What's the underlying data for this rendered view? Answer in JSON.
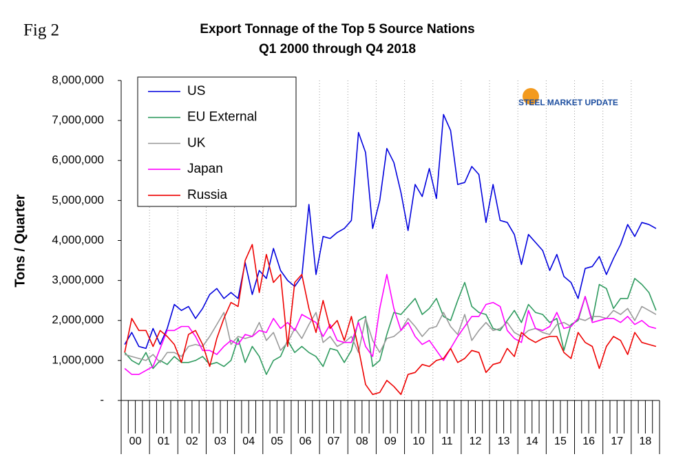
{
  "fig_label": "Fig 2",
  "logo": "STEEL MARKET UPDATE",
  "chart_data": {
    "type": "line",
    "title": "Export Tonnage of the Top 5 Source Nations",
    "subtitle": "Q1 2000 through Q4 2018",
    "y_label": "Tons / Quarter",
    "groups": [
      "00",
      "01",
      "02",
      "03",
      "04",
      "05",
      "06",
      "07",
      "08",
      "09",
      "10",
      "11",
      "12",
      "13",
      "14",
      "15",
      "16",
      "17",
      "18"
    ],
    "ylim": [
      0,
      8000000
    ],
    "yticks": [
      {
        "value": 0,
        "label": "-"
      },
      {
        "value": 1000000,
        "label": "1,000,000"
      },
      {
        "value": 2000000,
        "label": "2,000,000"
      },
      {
        "value": 3000000,
        "label": "3,000,000"
      },
      {
        "value": 4000000,
        "label": "4,000,000"
      },
      {
        "value": 5000000,
        "label": "5,000,000"
      },
      {
        "value": 6000000,
        "label": "6,000,000"
      },
      {
        "value": 7000000,
        "label": "7,000,000"
      },
      {
        "value": 8000000,
        "label": "8,000,000"
      }
    ],
    "legend": "upper left",
    "series": [
      {
        "name": "US",
        "color": "#0000dd",
        "values": [
          1400000,
          1700000,
          1350000,
          1300000,
          1800000,
          1400000,
          1800000,
          2400000,
          2250000,
          2350000,
          2050000,
          2300000,
          2650000,
          2800000,
          2550000,
          2700000,
          2550000,
          3450000,
          2650000,
          3250000,
          3050000,
          3800000,
          3250000,
          3000000,
          2850000,
          3100000,
          4900000,
          3150000,
          4100000,
          4050000,
          4200000,
          4300000,
          4500000,
          6700000,
          6200000,
          4300000,
          5000000,
          6300000,
          5950000,
          5200000,
          4250000,
          5400000,
          5100000,
          5800000,
          5050000,
          7150000,
          6750000,
          5400000,
          5450000,
          5850000,
          5650000,
          4450000,
          5400000,
          4500000,
          4450000,
          4150000,
          3400000,
          4150000,
          3950000,
          3750000,
          3250000,
          3650000,
          3100000,
          2950000,
          2550000,
          3300000,
          3350000,
          3600000,
          3150000,
          3550000,
          3900000,
          4400000,
          4100000,
          4450000,
          4400000,
          4300000
        ]
      },
      {
        "name": "EU External",
        "color": "#2e9a5e",
        "values": [
          1200000,
          1000000,
          900000,
          1200000,
          800000,
          1000000,
          900000,
          1100000,
          950000,
          950000,
          1000000,
          1100000,
          900000,
          950000,
          850000,
          1000000,
          1550000,
          950000,
          1350000,
          1100000,
          650000,
          1000000,
          1100000,
          1500000,
          1200000,
          1350000,
          1200000,
          1100000,
          850000,
          1300000,
          1250000,
          950000,
          1250000,
          2000000,
          2100000,
          850000,
          1000000,
          1650000,
          2200000,
          2150000,
          2350000,
          2550000,
          2150000,
          2300000,
          2550000,
          2100000,
          2000000,
          2500000,
          2950000,
          2350000,
          2200000,
          2150000,
          1800000,
          1750000,
          2000000,
          2250000,
          1950000,
          2400000,
          2200000,
          2150000,
          1950000,
          2050000,
          1250000,
          1900000,
          2000000,
          2600000,
          2000000,
          2900000,
          2800000,
          2300000,
          2550000,
          2550000,
          3050000,
          2900000,
          2700000,
          2250000
        ]
      },
      {
        "name": "UK",
        "color": "#9a9a9a",
        "values": [
          1150000,
          1100000,
          1050000,
          1000000,
          1150000,
          950000,
          1200000,
          1200000,
          1100000,
          1350000,
          1400000,
          1350000,
          1600000,
          1900000,
          2200000,
          1400000,
          1600000,
          1550000,
          1600000,
          1950000,
          1500000,
          1700000,
          1250000,
          1450000,
          1800000,
          1550000,
          1900000,
          2200000,
          1450000,
          1600000,
          1350000,
          1450000,
          1600000,
          1200000,
          2050000,
          1500000,
          1200000,
          1550000,
          1600000,
          1750000,
          2050000,
          1850000,
          1600000,
          1800000,
          1850000,
          2200000,
          1850000,
          1650000,
          2150000,
          1500000,
          1750000,
          1950000,
          1750000,
          1800000,
          1950000,
          1700000,
          1600000,
          1750000,
          1800000,
          1700000,
          1650000,
          1900000,
          1950000,
          1850000,
          2050000,
          2000000,
          2100000,
          2100000,
          2050000,
          2250000,
          2150000,
          2300000,
          2000000,
          2350000,
          2250000,
          2150000
        ]
      },
      {
        "name": "Japan",
        "color": "#ff00ff",
        "values": [
          800000,
          650000,
          650000,
          750000,
          850000,
          1300000,
          1750000,
          1750000,
          1850000,
          1850000,
          1600000,
          1250000,
          1250000,
          1150000,
          1350000,
          1500000,
          1400000,
          1650000,
          1600000,
          1750000,
          1700000,
          2050000,
          1800000,
          1950000,
          1750000,
          2150000,
          2050000,
          1950000,
          1600000,
          1900000,
          1500000,
          1450000,
          1450000,
          1950000,
          1350000,
          1100000,
          2300000,
          3150000,
          2300000,
          1750000,
          1950000,
          1600000,
          1400000,
          1500000,
          1250000,
          1000000,
          1300000,
          1600000,
          1850000,
          2100000,
          2100000,
          2400000,
          2450000,
          2350000,
          1750000,
          1550000,
          1450000,
          2250000,
          1800000,
          1750000,
          1850000,
          2200000,
          1800000,
          1850000,
          2050000,
          2600000,
          1950000,
          2000000,
          2050000,
          2050000,
          1950000,
          2100000,
          1900000,
          2000000,
          1850000,
          1800000
        ]
      },
      {
        "name": "Russia",
        "color": "#ee0000",
        "values": [
          1200000,
          2050000,
          1750000,
          1750000,
          1350000,
          1750000,
          1600000,
          1400000,
          950000,
          1650000,
          1750000,
          1400000,
          850000,
          1550000,
          2050000,
          2450000,
          2350000,
          3500000,
          3900000,
          2700000,
          3650000,
          2950000,
          3150000,
          1350000,
          2950000,
          3150000,
          2300000,
          1700000,
          2500000,
          1800000,
          2000000,
          1500000,
          2100000,
          1300000,
          400000,
          150000,
          200000,
          500000,
          350000,
          150000,
          650000,
          700000,
          900000,
          850000,
          1000000,
          1050000,
          1300000,
          950000,
          1050000,
          1250000,
          1200000,
          700000,
          900000,
          950000,
          1300000,
          1100000,
          1700000,
          1550000,
          1450000,
          1550000,
          1600000,
          1600000,
          1200000,
          1050000,
          1700000,
          1450000,
          1350000,
          800000,
          1350000,
          1600000,
          1500000,
          1150000,
          1700000,
          1450000,
          1400000,
          1350000
        ]
      }
    ]
  }
}
